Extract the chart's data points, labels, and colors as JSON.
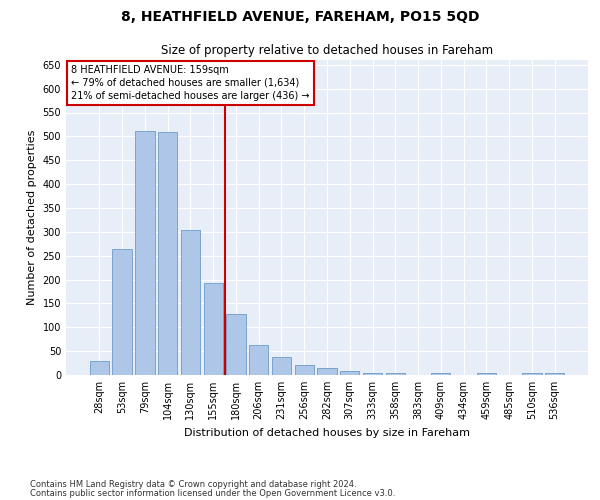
{
  "title": "8, HEATHFIELD AVENUE, FAREHAM, PO15 5QD",
  "subtitle": "Size of property relative to detached houses in Fareham",
  "xlabel": "Distribution of detached houses by size in Fareham",
  "ylabel": "Number of detached properties",
  "categories": [
    "28sqm",
    "53sqm",
    "79sqm",
    "104sqm",
    "130sqm",
    "155sqm",
    "180sqm",
    "206sqm",
    "231sqm",
    "256sqm",
    "282sqm",
    "307sqm",
    "333sqm",
    "358sqm",
    "383sqm",
    "409sqm",
    "434sqm",
    "459sqm",
    "485sqm",
    "510sqm",
    "536sqm"
  ],
  "values": [
    30,
    263,
    512,
    510,
    303,
    193,
    128,
    62,
    37,
    21,
    14,
    9,
    5,
    5,
    0,
    5,
    0,
    5,
    0,
    5,
    5
  ],
  "bar_color": "#aec6e8",
  "bar_edge_color": "#5a8fc0",
  "vline_color": "#cc0000",
  "vline_x_index": 5,
  "annotation_text": "8 HEATHFIELD AVENUE: 159sqm\n← 79% of detached houses are smaller (1,634)\n21% of semi-detached houses are larger (436) →",
  "annotation_box_color": "#cc0000",
  "ylim": [
    0,
    660
  ],
  "yticks": [
    0,
    50,
    100,
    150,
    200,
    250,
    300,
    350,
    400,
    450,
    500,
    550,
    600,
    650
  ],
  "footnote1": "Contains HM Land Registry data © Crown copyright and database right 2024.",
  "footnote2": "Contains public sector information licensed under the Open Government Licence v3.0.",
  "bg_color": "#e8eef8",
  "title_fontsize": 10,
  "subtitle_fontsize": 8.5,
  "tick_fontsize": 7,
  "ylabel_fontsize": 8,
  "xlabel_fontsize": 8,
  "annotation_fontsize": 7,
  "footnote_fontsize": 6
}
